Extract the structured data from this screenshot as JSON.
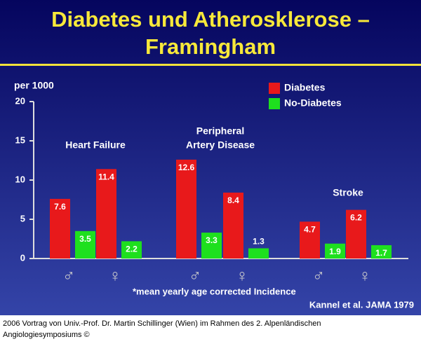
{
  "chart_data": {
    "type": "bar",
    "title": [
      "Diabetes und Atherosklerose –",
      "Framingham"
    ],
    "y_label": "per 1000",
    "categories": [
      "♂",
      "♀",
      "♂",
      "♀",
      "♂",
      "♀"
    ],
    "group_labels": [
      [
        "Heart Failure"
      ],
      [
        "Peripheral",
        "Artery Disease"
      ],
      [
        "Stroke"
      ]
    ],
    "series": [
      {
        "name": "Diabetes",
        "color": "#e8191b",
        "values": [
          7.6,
          11.4,
          12.6,
          8.4,
          4.7,
          6.2
        ]
      },
      {
        "name": "No-Diabetes",
        "color": "#1ee01e",
        "values": [
          3.5,
          2.2,
          3.3,
          1.3,
          1.9,
          1.7
        ]
      }
    ],
    "ylim": [
      0,
      20
    ],
    "yticks": [
      0,
      5,
      10,
      15,
      20
    ],
    "footnote": "*mean yearly age corrected Incidence",
    "source": "Kannel et al. JAMA 1979",
    "footer": [
      "2006 Vortrag von Univ.-Prof. Dr. Martin Schillinger (Wien) im Rahmen des 2. Alpenländischen",
      "Angiologiesymposiums ©"
    ]
  }
}
